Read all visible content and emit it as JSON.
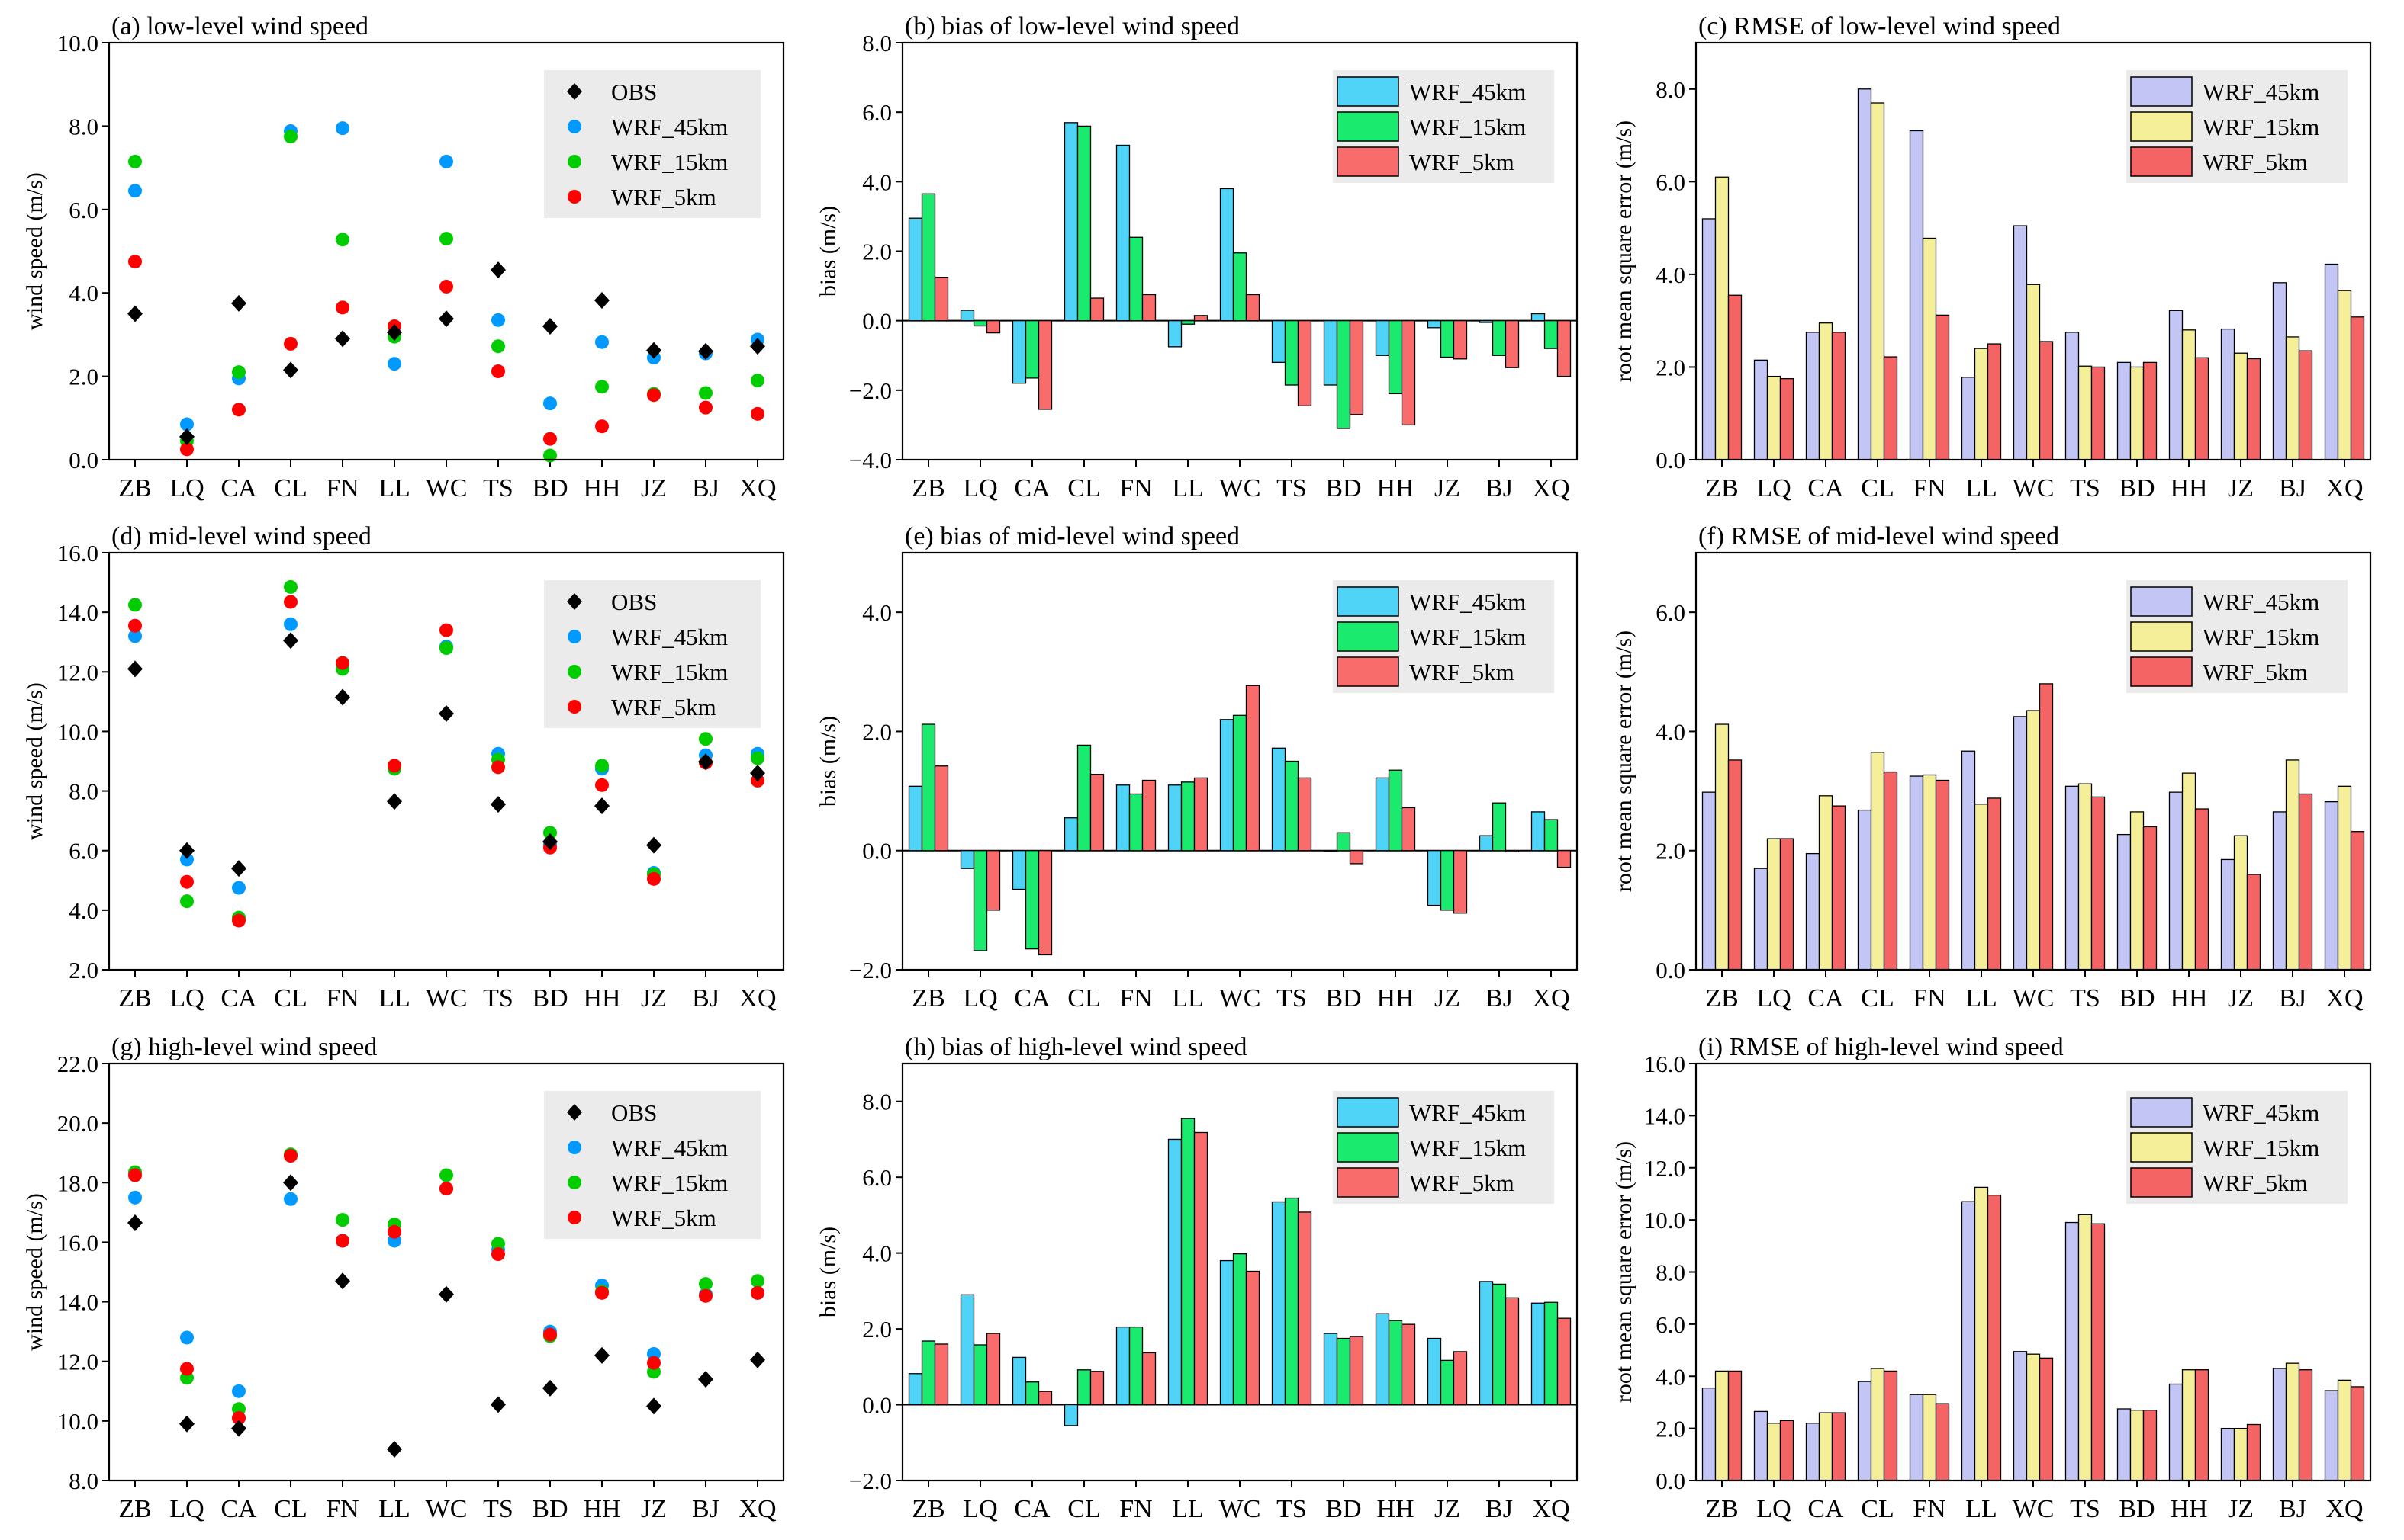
{
  "figure": {
    "colors": {
      "obs": "#000000",
      "wrf45_scatter": "#0099ff",
      "wrf15_scatter": "#00cc00",
      "wrf5_scatter": "#ff0000",
      "bias_45": "#4fd3f7",
      "bias_15": "#1aea6e",
      "bias_5": "#f96c6c",
      "rmse_45": "#c3c6f5",
      "rmse_15": "#f5ef99",
      "rmse_5": "#f46464",
      "legend_bg": "#ebebeb"
    },
    "categories": [
      "ZB",
      "LQ",
      "CA",
      "CL",
      "FN",
      "LL",
      "WC",
      "TS",
      "BD",
      "HH",
      "JZ",
      "BJ",
      "XQ"
    ]
  },
  "chart_data": [
    {
      "id": "a",
      "type": "scatter",
      "title": "(a) low-level wind speed",
      "ylabel": "wind speed (m/s)",
      "ylim": [
        0,
        10
      ],
      "yticks": [
        0,
        2,
        4,
        6,
        8,
        10
      ],
      "tick_labels": [
        "0.0",
        "2.0",
        "4.0",
        "6.0",
        "8.0",
        "10.0"
      ],
      "legend_position": "top-right",
      "categories": [
        "ZB",
        "LQ",
        "CA",
        "CL",
        "FN",
        "LL",
        "WC",
        "TS",
        "BD",
        "HH",
        "JZ",
        "BJ",
        "XQ"
      ],
      "series": [
        {
          "name": "OBS",
          "marker": "diamond",
          "color_key": "obs",
          "values": [
            3.5,
            0.55,
            3.75,
            2.15,
            2.9,
            3.05,
            3.38,
            4.55,
            3.2,
            3.82,
            2.62,
            2.6,
            2.72
          ]
        },
        {
          "name": "WRF_45km",
          "marker": "circle",
          "color_key": "wrf45_scatter",
          "values": [
            6.45,
            0.85,
            1.95,
            7.88,
            7.95,
            2.3,
            7.15,
            3.35,
            1.35,
            2.82,
            2.45,
            2.55,
            2.88
          ]
        },
        {
          "name": "WRF_15km",
          "marker": "circle",
          "color_key": "wrf15_scatter",
          "values": [
            7.15,
            0.45,
            2.1,
            7.75,
            5.28,
            2.95,
            5.3,
            2.72,
            0.1,
            1.75,
            1.58,
            1.6,
            1.9
          ]
        },
        {
          "name": "WRF_5km",
          "marker": "circle",
          "color_key": "wrf5_scatter",
          "values": [
            4.75,
            0.25,
            1.2,
            2.78,
            3.65,
            3.2,
            4.15,
            2.12,
            0.5,
            0.8,
            1.55,
            1.25,
            1.1
          ]
        }
      ]
    },
    {
      "id": "b",
      "type": "bar",
      "title": "(b) bias of low-level wind speed",
      "ylabel": "bias (m/s)",
      "ylim": [
        -4,
        8
      ],
      "yticks": [
        -4,
        -2,
        0,
        2,
        4,
        6,
        8
      ],
      "tick_labels": [
        "−4.0",
        "−2.0",
        "0.0",
        "2.0",
        "4.0",
        "6.0",
        "8.0"
      ],
      "zero_line": true,
      "legend_position": "top-right",
      "categories": [
        "ZB",
        "LQ",
        "CA",
        "CL",
        "FN",
        "LL",
        "WC",
        "TS",
        "BD",
        "HH",
        "JZ",
        "BJ",
        "XQ"
      ],
      "series": [
        {
          "name": "WRF_45km",
          "color_key": "bias_45",
          "values": [
            2.95,
            0.3,
            -1.8,
            5.7,
            5.05,
            -0.75,
            3.8,
            -1.2,
            -1.85,
            -1.0,
            -0.2,
            -0.05,
            0.2
          ]
        },
        {
          "name": "WRF_15km",
          "color_key": "bias_15",
          "values": [
            3.65,
            -0.15,
            -1.65,
            5.6,
            2.4,
            -0.1,
            1.95,
            -1.85,
            -3.1,
            -2.1,
            -1.05,
            -1.0,
            -0.8
          ]
        },
        {
          "name": "WRF_5km",
          "color_key": "bias_5",
          "values": [
            1.25,
            -0.35,
            -2.55,
            0.65,
            0.75,
            0.15,
            0.75,
            -2.45,
            -2.7,
            -3.0,
            -1.1,
            -1.35,
            -1.6
          ]
        }
      ]
    },
    {
      "id": "c",
      "type": "bar",
      "title": "(c) RMSE of low-level wind speed",
      "ylabel": "root mean square error (m/s)",
      "ylim": [
        0,
        9
      ],
      "yticks": [
        0,
        2,
        4,
        6,
        8
      ],
      "tick_labels": [
        "0.0",
        "2.0",
        "4.0",
        "6.0",
        "8.0"
      ],
      "legend_position": "top-right",
      "categories": [
        "ZB",
        "LQ",
        "CA",
        "CL",
        "FN",
        "LL",
        "WC",
        "TS",
        "BD",
        "HH",
        "JZ",
        "BJ",
        "XQ"
      ],
      "series": [
        {
          "name": "WRF_45km",
          "color_key": "rmse_45",
          "values": [
            5.2,
            2.15,
            2.75,
            8.0,
            7.1,
            1.78,
            5.05,
            2.75,
            2.1,
            3.22,
            2.82,
            3.82,
            4.22
          ]
        },
        {
          "name": "WRF_15km",
          "color_key": "rmse_15",
          "values": [
            6.1,
            1.8,
            2.95,
            7.7,
            4.78,
            2.4,
            3.78,
            2.02,
            2.0,
            2.8,
            2.3,
            2.65,
            3.65
          ]
        },
        {
          "name": "WRF_5km",
          "color_key": "rmse_5",
          "values": [
            3.55,
            1.75,
            2.75,
            2.22,
            3.12,
            2.5,
            2.55,
            2.0,
            2.1,
            2.2,
            2.18,
            2.35,
            3.08
          ]
        }
      ]
    },
    {
      "id": "d",
      "type": "scatter",
      "title": "(d) mid-level wind speed",
      "ylabel": "wind speed (m/s)",
      "ylim": [
        2,
        16
      ],
      "yticks": [
        2,
        4,
        6,
        8,
        10,
        12,
        14,
        16
      ],
      "tick_labels": [
        "2.0",
        "4.0",
        "6.0",
        "8.0",
        "10.0",
        "12.0",
        "14.0",
        "16.0"
      ],
      "legend_position": "top-right",
      "categories": [
        "ZB",
        "LQ",
        "CA",
        "CL",
        "FN",
        "LL",
        "WC",
        "TS",
        "BD",
        "HH",
        "JZ",
        "BJ",
        "XQ"
      ],
      "series": [
        {
          "name": "OBS",
          "marker": "diamond",
          "color_key": "obs",
          "values": [
            12.1,
            6.0,
            5.4,
            13.05,
            11.15,
            7.65,
            10.6,
            7.55,
            6.3,
            7.5,
            6.18,
            8.98,
            8.6
          ]
        },
        {
          "name": "WRF_45km",
          "marker": "circle",
          "color_key": "wrf45_scatter",
          "values": [
            13.2,
            5.7,
            4.75,
            13.6,
            12.25,
            8.75,
            12.85,
            9.25,
            6.2,
            8.75,
            5.25,
            9.2,
            9.25
          ]
        },
        {
          "name": "WRF_15km",
          "marker": "circle",
          "color_key": "wrf15_scatter",
          "values": [
            14.25,
            4.3,
            3.75,
            14.85,
            12.1,
            8.75,
            12.8,
            9.05,
            6.6,
            8.85,
            5.2,
            9.75,
            9.1
          ]
        },
        {
          "name": "WRF_5km",
          "marker": "circle",
          "color_key": "wrf5_scatter",
          "values": [
            13.55,
            4.95,
            3.65,
            14.35,
            12.3,
            8.85,
            13.4,
            8.8,
            6.1,
            8.2,
            5.05,
            8.95,
            8.35
          ]
        }
      ]
    },
    {
      "id": "e",
      "type": "bar",
      "title": "(e) bias of mid-level wind speed",
      "ylabel": "bias (m/s)",
      "ylim": [
        -2,
        5
      ],
      "yticks": [
        -2,
        0,
        2,
        4
      ],
      "tick_labels": [
        "−2.0",
        "0.0",
        "2.0",
        "4.0"
      ],
      "zero_line": true,
      "legend_position": "top-right",
      "categories": [
        "ZB",
        "LQ",
        "CA",
        "CL",
        "FN",
        "LL",
        "WC",
        "TS",
        "BD",
        "HH",
        "JZ",
        "BJ",
        "XQ"
      ],
      "series": [
        {
          "name": "WRF_45km",
          "color_key": "bias_45",
          "values": [
            1.08,
            -0.3,
            -0.65,
            0.55,
            1.1,
            1.1,
            2.2,
            1.72,
            0.0,
            1.22,
            -0.92,
            0.25,
            0.65
          ]
        },
        {
          "name": "WRF_15km",
          "color_key": "bias_15",
          "values": [
            2.12,
            -1.68,
            -1.65,
            1.77,
            0.95,
            1.15,
            2.27,
            1.5,
            0.3,
            1.35,
            -1.0,
            0.8,
            0.52
          ]
        },
        {
          "name": "WRF_5km",
          "color_key": "bias_5",
          "values": [
            1.42,
            -1.0,
            -1.75,
            1.28,
            1.18,
            1.22,
            2.77,
            1.22,
            -0.22,
            0.72,
            -1.05,
            -0.02,
            -0.28
          ]
        }
      ]
    },
    {
      "id": "f",
      "type": "bar",
      "title": "(f) RMSE of mid-level wind speed",
      "ylabel": "root mean square error (m/s)",
      "ylim": [
        0,
        7
      ],
      "yticks": [
        0,
        2,
        4,
        6
      ],
      "tick_labels": [
        "0.0",
        "2.0",
        "4.0",
        "6.0"
      ],
      "legend_position": "top-right",
      "categories": [
        "ZB",
        "LQ",
        "CA",
        "CL",
        "FN",
        "LL",
        "WC",
        "TS",
        "BD",
        "HH",
        "JZ",
        "BJ",
        "XQ"
      ],
      "series": [
        {
          "name": "WRF_45km",
          "color_key": "rmse_45",
          "values": [
            2.98,
            1.7,
            1.95,
            2.68,
            3.25,
            3.67,
            4.25,
            3.08,
            2.27,
            2.98,
            1.85,
            2.65,
            2.82
          ]
        },
        {
          "name": "WRF_15km",
          "color_key": "rmse_15",
          "values": [
            4.12,
            2.2,
            2.92,
            3.65,
            3.27,
            2.78,
            4.35,
            3.12,
            2.65,
            3.3,
            2.25,
            3.52,
            3.08
          ]
        },
        {
          "name": "WRF_5km",
          "color_key": "rmse_5",
          "values": [
            3.52,
            2.2,
            2.75,
            3.32,
            3.18,
            2.88,
            4.8,
            2.9,
            2.4,
            2.7,
            1.6,
            2.95,
            2.32
          ]
        }
      ]
    },
    {
      "id": "g",
      "type": "scatter",
      "title": "(g) high-level wind speed",
      "ylabel": "wind speed (m/s)",
      "ylim": [
        8,
        22
      ],
      "yticks": [
        8,
        10,
        12,
        14,
        16,
        18,
        20,
        22
      ],
      "tick_labels": [
        "8.0",
        "10.0",
        "12.0",
        "14.0",
        "16.0",
        "18.0",
        "20.0",
        "22.0"
      ],
      "legend_position": "top-right",
      "categories": [
        "ZB",
        "LQ",
        "CA",
        "CL",
        "FN",
        "LL",
        "WC",
        "TS",
        "BD",
        "HH",
        "JZ",
        "BJ",
        "XQ"
      ],
      "series": [
        {
          "name": "OBS",
          "marker": "diamond",
          "color_key": "obs",
          "values": [
            16.65,
            9.9,
            9.75,
            18.0,
            14.7,
            9.05,
            14.25,
            10.55,
            11.1,
            12.2,
            10.5,
            11.4,
            12.05
          ]
        },
        {
          "name": "WRF_45km",
          "marker": "circle",
          "color_key": "wrf45_scatter",
          "values": [
            17.5,
            12.8,
            11.0,
            17.45,
            16.05,
            16.05,
            17.8,
            15.75,
            13.0,
            14.55,
            12.25,
            14.25,
            14.3
          ]
        },
        {
          "name": "WRF_15km",
          "marker": "circle",
          "color_key": "wrf15_scatter",
          "values": [
            18.35,
            11.45,
            10.4,
            18.95,
            16.75,
            16.6,
            18.25,
            15.95,
            12.85,
            14.35,
            11.65,
            14.6,
            14.7
          ]
        },
        {
          "name": "WRF_5km",
          "marker": "circle",
          "color_key": "wrf5_scatter",
          "values": [
            18.25,
            11.75,
            10.1,
            18.9,
            16.05,
            16.35,
            17.8,
            15.6,
            12.9,
            14.3,
            11.95,
            14.2,
            14.3
          ]
        }
      ]
    },
    {
      "id": "h",
      "type": "bar",
      "title": "(h) bias of high-level wind speed",
      "ylabel": "bias (m/s)",
      "ylim": [
        -2,
        9
      ],
      "yticks": [
        -2,
        0,
        2,
        4,
        6,
        8
      ],
      "tick_labels": [
        "−2.0",
        "0.0",
        "2.0",
        "4.0",
        "6.0",
        "8.0"
      ],
      "zero_line": true,
      "legend_position": "top-right",
      "categories": [
        "ZB",
        "LQ",
        "CA",
        "CL",
        "FN",
        "LL",
        "WC",
        "TS",
        "BD",
        "HH",
        "JZ",
        "BJ",
        "XQ"
      ],
      "series": [
        {
          "name": "WRF_45km",
          "color_key": "bias_45",
          "values": [
            0.82,
            2.9,
            1.25,
            -0.55,
            2.05,
            7.0,
            3.8,
            5.35,
            1.88,
            2.4,
            1.75,
            3.25,
            2.68
          ]
        },
        {
          "name": "WRF_15km",
          "color_key": "bias_15",
          "values": [
            1.68,
            1.58,
            0.6,
            0.92,
            2.05,
            7.55,
            3.98,
            5.45,
            1.75,
            2.22,
            1.17,
            3.18,
            2.7
          ]
        },
        {
          "name": "WRF_5km",
          "color_key": "bias_5",
          "values": [
            1.6,
            1.88,
            0.35,
            0.88,
            1.37,
            7.18,
            3.52,
            5.08,
            1.8,
            2.12,
            1.4,
            2.82,
            2.28
          ]
        }
      ]
    },
    {
      "id": "i",
      "type": "bar",
      "title": "(i) RMSE of high-level wind speed",
      "ylabel": "root mean square error (m/s)",
      "ylim": [
        0,
        16
      ],
      "yticks": [
        0,
        2,
        4,
        6,
        8,
        10,
        12,
        14,
        16
      ],
      "tick_labels": [
        "0.0",
        "2.0",
        "4.0",
        "6.0",
        "8.0",
        "10.0",
        "12.0",
        "14.0",
        "16.0"
      ],
      "legend_position": "top-right",
      "categories": [
        "ZB",
        "LQ",
        "CA",
        "CL",
        "FN",
        "LL",
        "WC",
        "TS",
        "BD",
        "HH",
        "JZ",
        "BJ",
        "XQ"
      ],
      "series": [
        {
          "name": "WRF_45km",
          "color_key": "rmse_45",
          "values": [
            3.55,
            2.65,
            2.2,
            3.8,
            3.3,
            10.7,
            4.95,
            9.9,
            2.75,
            3.7,
            2.0,
            4.3,
            3.45
          ]
        },
        {
          "name": "WRF_15km",
          "color_key": "rmse_15",
          "values": [
            4.2,
            2.2,
            2.6,
            4.3,
            3.3,
            11.25,
            4.85,
            10.2,
            2.7,
            4.25,
            2.0,
            4.5,
            3.85
          ]
        },
        {
          "name": "WRF_5km",
          "color_key": "rmse_5",
          "values": [
            4.2,
            2.3,
            2.6,
            4.2,
            2.95,
            10.95,
            4.7,
            9.85,
            2.7,
            4.25,
            2.15,
            4.25,
            3.6
          ]
        }
      ]
    }
  ]
}
